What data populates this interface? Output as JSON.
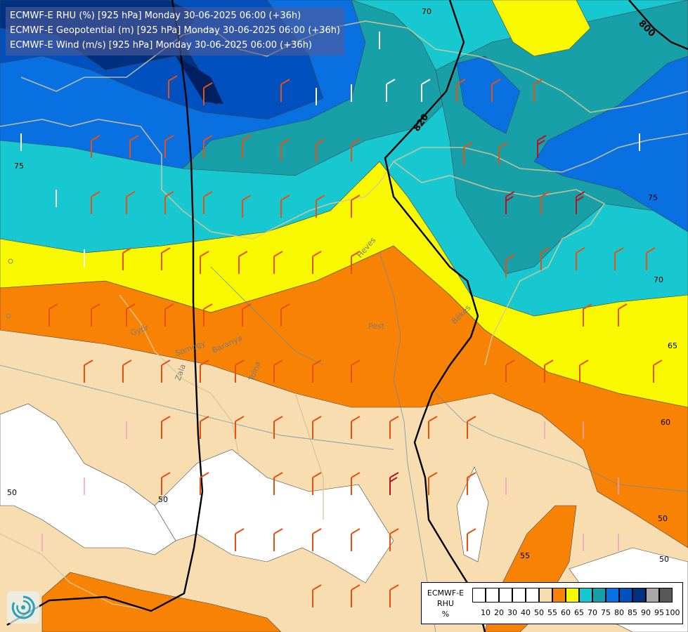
{
  "titles": [
    "ECMWF-E RHU (%) [925 hPa] Monday 30-06-2025 06:00 (+36h)",
    "ECMWF-E Geopotential (m) [925 hPa] Monday 30-06-2025 06:00 (+36h)",
    "ECMWF-E Wind (m/s) [925 hPa] Monday 30-06-2025 06:00 (+36h)"
  ],
  "legend": {
    "line1": "ECMWF-E",
    "line2": "RHU",
    "line3": "%",
    "ticks": [
      "10",
      "20",
      "30",
      "40",
      "50",
      "55",
      "60",
      "65",
      "70",
      "75",
      "80",
      "85",
      "90",
      "95",
      "100"
    ],
    "colors": [
      "#ffffff",
      "#ffffff",
      "#ffffff",
      "#ffffff",
      "#ffffff",
      "#f7ddb0",
      "#f88204",
      "#f8f800",
      "#18c8d0",
      "#18a0a8",
      "#0870e0",
      "#0050c0",
      "#003080",
      "#a8a8a8",
      "#585858"
    ]
  },
  "colors": {
    "white": "#ffffff",
    "tan": "#f7ddb0",
    "orange": "#f88204",
    "yellow": "#f8f800",
    "cyan": "#18c8d0",
    "teal": "#18a0a8",
    "blue": "#0870e0",
    "darkblue": "#0050c0",
    "navy": "#003080"
  },
  "contour_labels": [
    "75",
    "70",
    "70",
    "75",
    "65",
    "60",
    "55",
    "50",
    "50",
    "50",
    "50"
  ],
  "geopotential_labels": [
    "800",
    "820"
  ],
  "place_names": [
    "Heves",
    "Pest",
    "Békés",
    "Zala",
    "Tolna",
    "Baranya",
    "Somogy",
    "Győr"
  ]
}
